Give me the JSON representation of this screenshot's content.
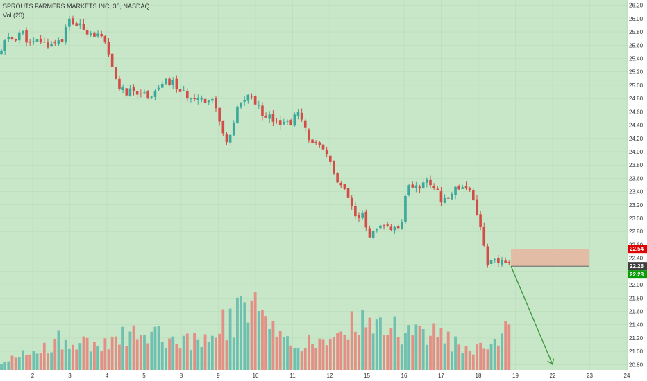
{
  "header": {
    "title": "SPROUTS FARMERS MARKETS INC, 30, NASDAQ",
    "volume_label": "Vol (20)"
  },
  "colors": {
    "background": "#c8e6c8",
    "up": "#3aa89a",
    "down": "#d24d47",
    "up_volume": "#6fc0b0",
    "down_volume": "#e48f86",
    "zone": "#e8b4a0",
    "arrow": "#3e9a3e",
    "tag_red": "#e00000",
    "tag_dark": "#404040",
    "tag_green": "#0a9d0a"
  },
  "chart_data": {
    "type": "candlestick",
    "title": "SPROUTS FARMERS MARKETS INC, 30, NASDAQ",
    "y_axis": {
      "ticks": [
        "26.20",
        "26.00",
        "25.80",
        "25.60",
        "25.40",
        "25.20",
        "25.00",
        "24.80",
        "24.60",
        "24.40",
        "24.20",
        "24.00",
        "23.80",
        "23.60",
        "23.40",
        "23.20",
        "23.00",
        "22.80",
        "22.60",
        "22.40",
        "22.20",
        "22.00",
        "21.80",
        "21.60",
        "21.40",
        "21.20",
        "21.00",
        "20.80"
      ],
      "range": [
        20.72,
        26.28
      ]
    },
    "x_axis": {
      "ticks": [
        "2",
        "3",
        "4",
        "5",
        "8",
        "9",
        "10",
        "11",
        "12",
        "15",
        "16",
        "17",
        "18",
        "19",
        "22",
        "23",
        "24"
      ]
    },
    "price_tags": [
      {
        "value": 22.54,
        "label": "22.54",
        "style": "red"
      },
      {
        "value": 22.28,
        "label": "22.28",
        "style": "dark"
      },
      {
        "value": 22.28,
        "label": "22.28",
        "style": "green"
      }
    ],
    "close_path": [
      [
        0,
        25.45
      ],
      [
        10,
        25.72
      ],
      [
        20,
        25.68
      ],
      [
        30,
        25.82
      ],
      [
        45,
        25.58
      ],
      [
        55,
        25.68
      ],
      [
        68,
        25.6
      ],
      [
        80,
        25.66
      ],
      [
        90,
        25.7
      ],
      [
        100,
        25.98
      ],
      [
        110,
        25.9
      ],
      [
        120,
        25.85
      ],
      [
        130,
        25.8
      ],
      [
        140,
        25.75
      ],
      [
        150,
        25.65
      ],
      [
        160,
        25.3
      ],
      [
        170,
        25.0
      ],
      [
        180,
        24.88
      ],
      [
        190,
        24.9
      ],
      [
        200,
        24.92
      ],
      [
        210,
        24.85
      ],
      [
        220,
        24.88
      ],
      [
        230,
        24.98
      ],
      [
        240,
        25.05
      ],
      [
        250,
        25.03
      ],
      [
        260,
        24.9
      ],
      [
        270,
        24.82
      ],
      [
        280,
        24.85
      ],
      [
        290,
        24.8
      ],
      [
        300,
        24.78
      ],
      [
        310,
        24.75
      ],
      [
        318,
        24.35
      ],
      [
        325,
        24.15
      ],
      [
        332,
        24.2
      ],
      [
        340,
        24.6
      ],
      [
        350,
        24.78
      ],
      [
        360,
        24.85
      ],
      [
        368,
        24.75
      ],
      [
        375,
        24.6
      ],
      [
        385,
        24.55
      ],
      [
        395,
        24.5
      ],
      [
        405,
        24.45
      ],
      [
        415,
        24.42
      ],
      [
        423,
        24.5
      ],
      [
        430,
        24.58
      ],
      [
        440,
        24.3
      ],
      [
        450,
        24.15
      ],
      [
        460,
        24.05
      ],
      [
        470,
        23.95
      ],
      [
        478,
        23.8
      ],
      [
        485,
        23.55
      ],
      [
        492,
        23.45
      ],
      [
        500,
        23.35
      ],
      [
        508,
        23.1
      ],
      [
        515,
        22.95
      ],
      [
        522,
        23.05
      ],
      [
        530,
        22.75
      ],
      [
        540,
        22.78
      ],
      [
        550,
        22.85
      ],
      [
        560,
        22.88
      ],
      [
        570,
        22.82
      ],
      [
        578,
        22.8
      ],
      [
        583,
        23.35
      ],
      [
        590,
        23.5
      ],
      [
        600,
        23.45
      ],
      [
        610,
        23.55
      ],
      [
        620,
        23.52
      ],
      [
        630,
        23.45
      ],
      [
        637,
        23.2
      ],
      [
        645,
        23.3
      ],
      [
        655,
        23.45
      ],
      [
        665,
        23.5
      ],
      [
        675,
        23.45
      ],
      [
        682,
        23.3
      ],
      [
        688,
        23.05
      ],
      [
        695,
        22.7
      ],
      [
        702,
        22.35
      ],
      [
        710,
        22.32
      ],
      [
        720,
        22.35
      ],
      [
        728,
        22.3
      ],
      [
        736,
        22.28
      ]
    ],
    "volume_profile": [
      [
        0,
        0.1
      ],
      [
        40,
        0.25
      ],
      [
        95,
        0.45
      ],
      [
        150,
        0.35
      ],
      [
        205,
        0.6
      ],
      [
        260,
        0.4
      ],
      [
        310,
        0.6
      ],
      [
        340,
        0.75
      ],
      [
        362,
        1.0
      ],
      [
        376,
        0.72
      ],
      [
        420,
        0.3
      ],
      [
        470,
        0.45
      ],
      [
        520,
        0.7
      ],
      [
        575,
        0.55
      ],
      [
        630,
        0.5
      ],
      [
        680,
        0.3
      ],
      [
        736,
        0.58
      ]
    ],
    "annotations": [
      {
        "type": "rectangle",
        "label": "resistance-zone",
        "y_range": [
          22.28,
          22.54
        ],
        "x_range": [
          736,
          848
        ]
      },
      {
        "type": "arrow",
        "label": "projected-drop",
        "from": [
          736,
          22.28
        ],
        "to": [
          796,
          20.8
        ]
      }
    ]
  }
}
